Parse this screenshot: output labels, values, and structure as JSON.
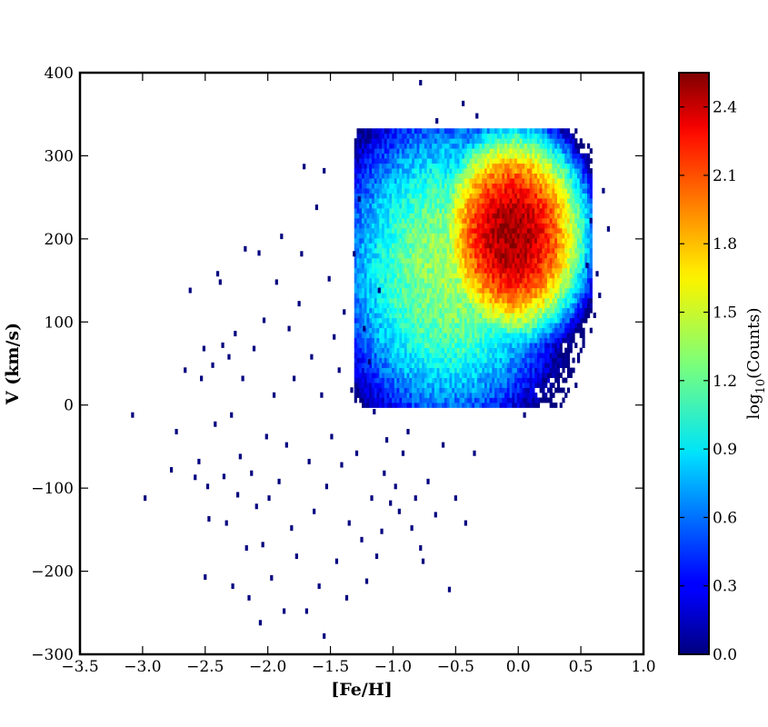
{
  "chart_data": {
    "type": "heatmap",
    "title": "",
    "xlabel": "[Fe/H]",
    "ylabel": "V (km/s)",
    "xlim": [
      -3.5,
      1.0
    ],
    "ylim": [
      -300,
      400
    ],
    "xticks": [
      -3.5,
      -3.0,
      -2.5,
      -2.0,
      -1.5,
      -1.0,
      -0.5,
      0.0,
      0.5,
      1.0
    ],
    "xtick_labels": [
      "−3.5",
      "−3.0",
      "−2.5",
      "−2.0",
      "−1.5",
      "−1.0",
      "−0.5",
      "0.0",
      "0.5",
      "1.0"
    ],
    "yticks": [
      -300,
      -200,
      -100,
      0,
      100,
      200,
      300,
      400
    ],
    "ytick_labels": [
      "−300",
      "−200",
      "−100",
      "0",
      "100",
      "200",
      "300",
      "400"
    ],
    "colorbar": {
      "label_main": "log",
      "label_sub": "10",
      "label_rest": "(Counts)",
      "range": [
        0.0,
        2.55
      ],
      "ticks": [
        0.0,
        0.3,
        0.6,
        0.9,
        1.2,
        1.5,
        1.8,
        2.1,
        2.4
      ],
      "tick_labels": [
        "0.0",
        "0.3",
        "0.6",
        "0.9",
        "1.2",
        "1.5",
        "1.8",
        "2.1",
        "2.4"
      ],
      "colormap": "jet"
    },
    "grid": false,
    "density_components": [
      {
        "feh_center": -0.05,
        "v_center": 205,
        "feh_sigma": 0.2,
        "v_sigma": 42,
        "peak_log10_counts": 2.5
      },
      {
        "feh_center": -0.55,
        "v_center": 165,
        "feh_sigma": 0.38,
        "v_sigma": 80,
        "peak_log10_counts": 1.35
      }
    ],
    "sparse_points": [
      [
        -3.08,
        -12
      ],
      [
        -2.98,
        -112
      ],
      [
        -2.77,
        -78
      ],
      [
        -2.73,
        -32
      ],
      [
        -2.66,
        42
      ],
      [
        -2.62,
        138
      ],
      [
        -2.58,
        -87
      ],
      [
        -2.55,
        -68
      ],
      [
        -2.53,
        32
      ],
      [
        -2.51,
        68
      ],
      [
        -2.5,
        -207
      ],
      [
        -2.48,
        -98
      ],
      [
        -2.47,
        -137
      ],
      [
        -2.44,
        48
      ],
      [
        -2.42,
        -23
      ],
      [
        -2.4,
        158
      ],
      [
        -2.38,
        148
      ],
      [
        -2.36,
        72
      ],
      [
        -2.35,
        -86
      ],
      [
        -2.33,
        -142
      ],
      [
        -2.31,
        58
      ],
      [
        -2.29,
        -12
      ],
      [
        -2.28,
        -218
      ],
      [
        -2.26,
        86
      ],
      [
        -2.24,
        -108
      ],
      [
        -2.22,
        -62
      ],
      [
        -2.2,
        32
      ],
      [
        -2.18,
        188
      ],
      [
        -2.17,
        -172
      ],
      [
        -2.15,
        -232
      ],
      [
        -2.13,
        -82
      ],
      [
        -2.11,
        68
      ],
      [
        -2.09,
        -122
      ],
      [
        -2.07,
        183
      ],
      [
        -2.06,
        -262
      ],
      [
        -2.04,
        -168
      ],
      [
        -2.03,
        102
      ],
      [
        -2.01,
        -38
      ],
      [
        -1.99,
        -112
      ],
      [
        -1.97,
        -208
      ],
      [
        -1.95,
        12
      ],
      [
        -1.93,
        148
      ],
      [
        -1.91,
        -92
      ],
      [
        -1.89,
        203
      ],
      [
        -1.87,
        -248
      ],
      [
        -1.85,
        -48
      ],
      [
        -1.83,
        92
      ],
      [
        -1.81,
        -148
      ],
      [
        -1.79,
        32
      ],
      [
        -1.77,
        -182
      ],
      [
        -1.75,
        122
      ],
      [
        -1.73,
        182
      ],
      [
        -1.71,
        287
      ],
      [
        -1.69,
        -248
      ],
      [
        -1.67,
        -68
      ],
      [
        -1.65,
        58
      ],
      [
        -1.63,
        -128
      ],
      [
        -1.61,
        238
      ],
      [
        -1.59,
        -218
      ],
      [
        -1.57,
        12
      ],
      [
        -1.55,
        282
      ],
      [
        -1.55,
        -278
      ],
      [
        -1.53,
        -98
      ],
      [
        -1.51,
        152
      ],
      [
        -1.49,
        -38
      ],
      [
        -1.47,
        82
      ],
      [
        -1.45,
        -188
      ],
      [
        -1.43,
        42
      ],
      [
        -1.41,
        -72
      ],
      [
        -1.39,
        112
      ],
      [
        -1.37,
        -232
      ],
      [
        -1.35,
        -142
      ],
      [
        -1.33,
        18
      ],
      [
        -1.31,
        182
      ],
      [
        -1.29,
        -58
      ],
      [
        -1.27,
        248
      ],
      [
        -1.25,
        -162
      ],
      [
        -1.23,
        92
      ],
      [
        -1.21,
        -212
      ],
      [
        -1.19,
        52
      ],
      [
        -1.17,
        -112
      ],
      [
        -1.15,
        -8
      ],
      [
        -1.13,
        -182
      ],
      [
        -1.11,
        138
      ],
      [
        -1.09,
        -152
      ],
      [
        -1.07,
        -82
      ],
      [
        -1.05,
        -42
      ],
      [
        -1.02,
        -118
      ],
      [
        -0.98,
        -98
      ],
      [
        -0.95,
        -128
      ],
      [
        -0.92,
        -58
      ],
      [
        -0.88,
        -32
      ],
      [
        -0.85,
        -148
      ],
      [
        -0.82,
        -112
      ],
      [
        -0.78,
        -172
      ],
      [
        -0.76,
        -188
      ],
      [
        -0.72,
        -92
      ],
      [
        -0.66,
        -132
      ],
      [
        -0.6,
        -48
      ],
      [
        -0.55,
        -222
      ],
      [
        -0.5,
        -112
      ],
      [
        -0.42,
        -142
      ],
      [
        -0.35,
        -58
      ],
      [
        -0.78,
        388
      ],
      [
        -0.44,
        363
      ],
      [
        -0.65,
        342
      ],
      [
        -0.33,
        348
      ],
      [
        0.55,
        168
      ],
      [
        0.63,
        158
      ],
      [
        0.72,
        212
      ],
      [
        0.65,
        132
      ],
      [
        0.68,
        258
      ],
      [
        0.58,
        222
      ],
      [
        0.61,
        108
      ],
      [
        0.05,
        -12
      ]
    ]
  }
}
